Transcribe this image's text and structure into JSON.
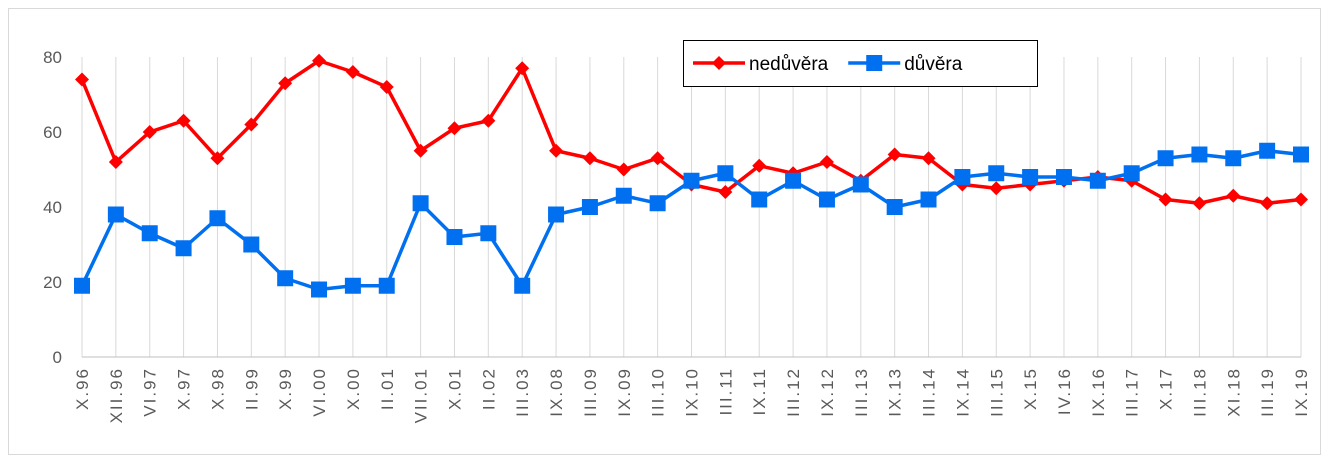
{
  "chart_data": {
    "type": "line",
    "categories": [
      "X.96",
      "XII.96",
      "VI.97",
      "X.97",
      "X.98",
      "II.99",
      "X.99",
      "VI.00",
      "X.00",
      "II.01",
      "VII.01",
      "X.01",
      "II.02",
      "III.03",
      "IX.08",
      "III.09",
      "IX.09",
      "III.10",
      "IX.10",
      "III.11",
      "IX.11",
      "III.12",
      "IX.12",
      "III.13",
      "IX.13",
      "III.14",
      "IX.14",
      "III.15",
      "X.15",
      "IV.16",
      "IX.16",
      "III.17",
      "X.17",
      "III.18",
      "XI.18",
      "III.19",
      "IX.19"
    ],
    "series": [
      {
        "name": "nedůvěra",
        "color": "#ff0000",
        "marker": "diamond",
        "values": [
          74,
          52,
          60,
          63,
          53,
          62,
          73,
          79,
          76,
          72,
          55,
          61,
          63,
          77,
          55,
          53,
          50,
          53,
          46,
          44,
          51,
          49,
          52,
          47,
          54,
          53,
          46,
          45,
          46,
          47,
          48,
          47,
          42,
          41,
          43,
          41,
          42
        ]
      },
      {
        "name": "důvěra",
        "color": "#0070f0",
        "marker": "square",
        "values": [
          19,
          38,
          33,
          29,
          37,
          30,
          21,
          18,
          19,
          19,
          41,
          32,
          33,
          19,
          38,
          40,
          43,
          41,
          47,
          49,
          42,
          47,
          42,
          46,
          40,
          42,
          48,
          49,
          48,
          48,
          47,
          49,
          53,
          54,
          53,
          55,
          54
        ]
      }
    ],
    "ylim": [
      0,
      80
    ],
    "yticks": [
      0,
      20,
      40,
      60,
      80
    ],
    "vertical_grid": true,
    "legend": "top-right"
  }
}
